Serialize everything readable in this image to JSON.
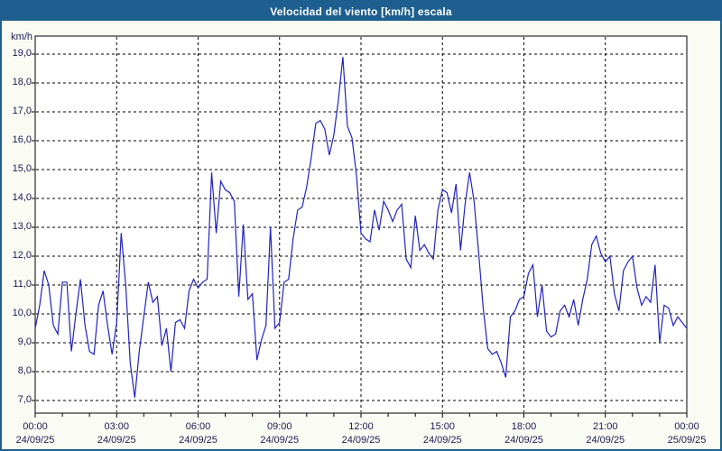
{
  "window": {
    "title": "Velocidad del viento [km/h] escala"
  },
  "colors": {
    "titlebar": "#1e5f8f",
    "frame": "#1e5f8f",
    "chart_background": "#fafbf2",
    "plot_background": "#ffffff",
    "grid": "#000000",
    "axis": "#000000",
    "line": "#2222c2",
    "label_text": "#1a1a55",
    "title_text": "#ffffff"
  },
  "chart_data": {
    "type": "line",
    "title": "Velocidad del viento [km/h] escala",
    "ylabel": "km/h",
    "xlabel": "",
    "legend": null,
    "grid": "dashed",
    "ylim": [
      6.5,
      19.6
    ],
    "xlim_hours": [
      0,
      24
    ],
    "y_tick_values": [
      19,
      18,
      17,
      16,
      15,
      14,
      13,
      12,
      11,
      10,
      9,
      8,
      7
    ],
    "y_tick_labels": [
      "19,0",
      "18,0",
      "17,0",
      "16,0",
      "15,0",
      "14,0",
      "13,0",
      "12,0",
      "11,0",
      "10,0",
      "9,0",
      "8,0",
      "7,0"
    ],
    "x_tick_hours": [
      0,
      3,
      6,
      9,
      12,
      15,
      18,
      21,
      24
    ],
    "x_tick_times": [
      "00:00",
      "03:00",
      "06:00",
      "09:00",
      "12:00",
      "15:00",
      "18:00",
      "21:00",
      "00:00"
    ],
    "x_tick_dates": [
      "24/09/25",
      "24/09/25",
      "24/09/25",
      "24/09/25",
      "24/09/25",
      "24/09/25",
      "24/09/25",
      "24/09/25",
      "25/09/25"
    ],
    "minor_tick_every_hours": 1,
    "start_time": "00:00",
    "sample_interval_minutes": 10,
    "values": [
      9.5,
      10.3,
      11.5,
      11.0,
      9.6,
      9.3,
      11.1,
      11.1,
      8.7,
      10.0,
      11.2,
      9.6,
      8.7,
      8.6,
      10.3,
      10.8,
      9.6,
      8.6,
      9.7,
      12.8,
      11.0,
      8.3,
      7.1,
      8.7,
      9.9,
      11.1,
      10.4,
      10.6,
      8.9,
      9.5,
      8.0,
      9.7,
      9.8,
      9.5,
      10.8,
      11.2,
      10.9,
      11.1,
      11.2,
      14.9,
      12.8,
      14.6,
      14.3,
      14.2,
      13.9,
      10.6,
      13.1,
      10.5,
      10.7,
      8.4,
      9.1,
      9.6,
      13.0,
      9.5,
      9.7,
      11.1,
      11.2,
      12.6,
      13.6,
      13.7,
      14.4,
      15.4,
      16.6,
      16.7,
      16.4,
      15.5,
      16.2,
      17.4,
      18.9,
      16.5,
      16.1,
      14.8,
      12.8,
      12.6,
      12.5,
      13.6,
      12.9,
      13.9,
      13.6,
      13.2,
      13.6,
      13.8,
      11.9,
      11.6,
      13.4,
      12.2,
      12.4,
      12.1,
      11.9,
      13.6,
      14.3,
      14.2,
      13.5,
      14.5,
      12.2,
      13.8,
      14.9,
      13.9,
      12.1,
      10.2,
      8.8,
      8.6,
      8.7,
      8.3,
      7.8,
      9.9,
      10.1,
      10.5,
      10.6,
      11.4,
      11.7,
      9.9,
      11.0,
      9.4,
      9.2,
      9.3,
      10.1,
      10.3,
      9.9,
      10.5,
      9.6,
      10.5,
      11.2,
      12.4,
      12.7,
      12.1,
      11.8,
      12.0,
      10.7,
      10.1,
      11.5,
      11.8,
      12.0,
      10.9,
      10.3,
      10.6,
      10.4,
      11.7,
      9.0,
      10.3,
      10.2,
      9.6,
      9.9,
      9.7,
      9.5
    ]
  }
}
